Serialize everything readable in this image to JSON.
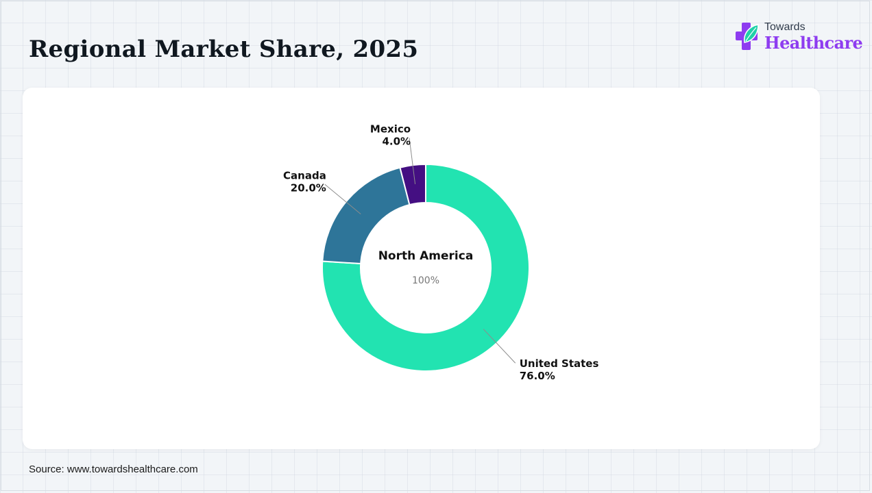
{
  "page": {
    "title": "Regional Market Share, 2025",
    "source": "Source: www.towardshealthcare.com"
  },
  "brand": {
    "top_text": "Towards",
    "bottom_text": "Healthcare",
    "icon": "medical-cross-leaf-icon",
    "colors": {
      "cross": "#8e3cf0",
      "leaf": "#1fd1a8",
      "text": "#8e3cf0"
    }
  },
  "chart_data": {
    "type": "pie",
    "variant": "donut",
    "center_label": "North America",
    "center_value": "100%",
    "slices": [
      {
        "label": "United States",
        "value": 76.0,
        "value_label": "76.0%",
        "color": "#22e3b1"
      },
      {
        "label": "Canada",
        "value": 20.0,
        "value_label": "20.0%",
        "color": "#2e7599"
      },
      {
        "label": "Mexico",
        "value": 4.0,
        "value_label": "4.0%",
        "color": "#440f82"
      }
    ],
    "start_angle": "12 o'clock",
    "direction": "clockwise"
  }
}
